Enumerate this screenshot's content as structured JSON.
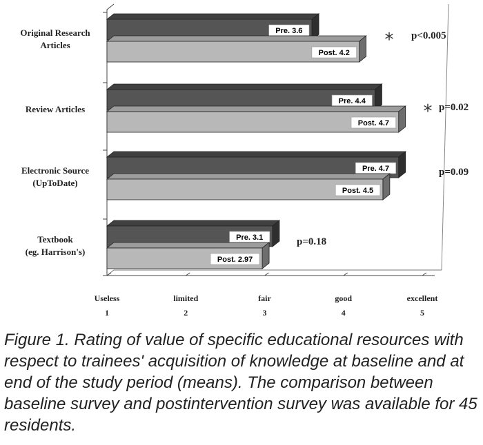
{
  "chart_data": {
    "type": "bar",
    "orientation": "horizontal",
    "categories": [
      [
        "Original Research",
        "Articles"
      ],
      [
        "Review Articles"
      ],
      [
        "Electronic Source",
        "(UpToDate)"
      ],
      [
        "Textbook",
        "(eg. Harrison's)"
      ]
    ],
    "series": [
      {
        "name": "Pre",
        "values": [
          3.6,
          4.4,
          4.7,
          3.1
        ],
        "color": "#555555",
        "labels": [
          "Pre. 3.6",
          "Pre. 4.4",
          "Pre. 4.7",
          "Pre. 3.1"
        ]
      },
      {
        "name": "Post",
        "values": [
          4.2,
          4.7,
          4.5,
          2.97
        ],
        "color": "#b8b8b8",
        "labels": [
          "Post. 4.2",
          "Post. 4.7",
          "Post. 4.5",
          "Post. 2.97"
        ]
      }
    ],
    "significance": [
      {
        "p": "p<0.005",
        "star": true
      },
      {
        "p": "p=0.02",
        "star": true
      },
      {
        "p": "p=0.09",
        "star": false
      },
      {
        "p": "p=0.18",
        "star": false
      }
    ],
    "star_symbol": "*",
    "x_ticks": [
      {
        "word": "Useless",
        "num": "1"
      },
      {
        "word": "limited",
        "num": "2"
      },
      {
        "word": "fair",
        "num": "3"
      },
      {
        "word": "good",
        "num": "4"
      },
      {
        "word": "excellent",
        "num": "5"
      }
    ],
    "xlim": [
      1,
      5
    ],
    "grid": false,
    "style": "3d"
  },
  "caption": "Figure 1. Rating of value of specific educational resources with respect to trainees' acquisition of knowledge at baseline and at end of the study period (means). The comparison between baseline survey and postintervention survey was available for 45 residents."
}
